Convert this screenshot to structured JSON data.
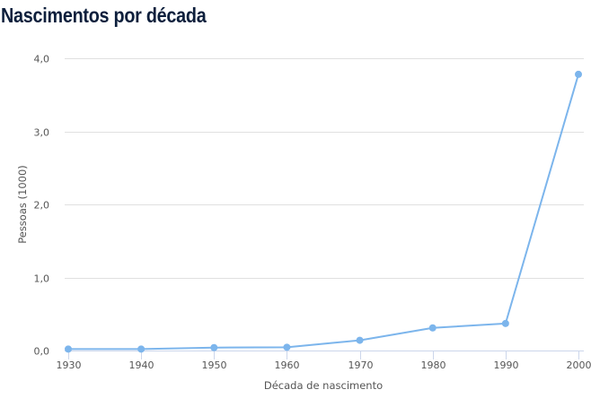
{
  "chart_data": {
    "type": "line",
    "title": "Nascimentos por década",
    "xlabel": "Década de nascimento",
    "ylabel": "Pessoas (1000)",
    "categories": [
      "1930",
      "1940",
      "1950",
      "1960",
      "1970",
      "1980",
      "1990",
      "2000"
    ],
    "series": [
      {
        "name": "Pessoas (1000)",
        "values": [
          0.02,
          0.02,
          0.04,
          0.045,
          0.14,
          0.31,
          0.37,
          3.78
        ]
      }
    ],
    "ylim": [
      0,
      4
    ],
    "yticks": [
      "0,0",
      "1,0",
      "2,0",
      "3,0",
      "4,0"
    ],
    "grid": true,
    "line_color": "#7cb5ec"
  }
}
